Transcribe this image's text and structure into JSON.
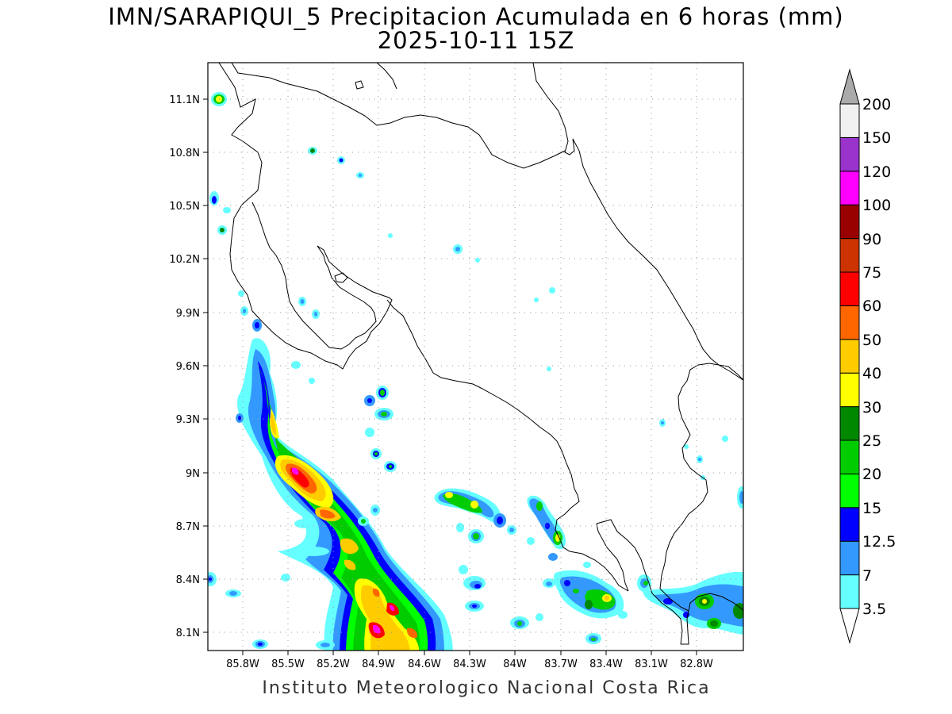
{
  "header": {
    "title": "IMN/SARAPIQUI_5 Precipitacion Acumulada en 6 horas (mm)",
    "subtitle": "2025-10-11 15Z"
  },
  "footer": {
    "credit": "Instituto Meteorologico Nacional Costa Rica"
  },
  "map": {
    "x_ticks": [
      "85.8W",
      "85.5W",
      "85.2W",
      "84.9W",
      "84.6W",
      "84.3W",
      "84W",
      "83.7W",
      "83.4W",
      "83.1W",
      "82.8W"
    ],
    "y_ticks": [
      "11.1N",
      "10.8N",
      "10.5N",
      "10.2N",
      "9.9N",
      "9.6N",
      "9.3N",
      "9N",
      "8.7N",
      "8.4N",
      "8.1N"
    ],
    "grid": true
  },
  "colorbar": {
    "labels": [
      "3.5",
      "7",
      "12.5",
      "15",
      "20",
      "25",
      "30",
      "40",
      "50",
      "60",
      "75",
      "90",
      "100",
      "120",
      "150",
      "200"
    ],
    "colors": [
      "#66ffff",
      "#3399ff",
      "#0000ff",
      "#00ff00",
      "#00cc00",
      "#008800",
      "#ffff00",
      "#ffcc00",
      "#ff6600",
      "#ff0000",
      "#cc3300",
      "#990000",
      "#ff00ff",
      "#9933cc",
      "#f0f0f0",
      "#aaaaaa"
    ]
  }
}
